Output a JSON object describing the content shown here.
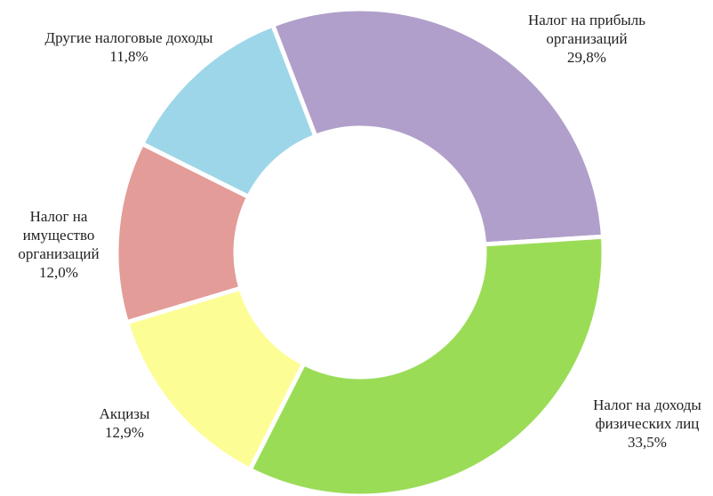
{
  "chart_data": {
    "type": "donut",
    "categories": [
      "Налог на прибыль организаций",
      "Налог на доходы физических лиц",
      "Акцизы",
      "Налог на имущество организаций",
      "Другие налоговые доходы"
    ],
    "values": [
      29.8,
      33.5,
      12.9,
      12.0,
      11.8
    ],
    "value_labels": [
      "29,8%",
      "33,5%",
      "12,9%",
      "12,0%",
      "11,8%"
    ],
    "colors": [
      "#b09fca",
      "#9bdc57",
      "#fdfd96",
      "#e39c98",
      "#9dd6e8"
    ]
  }
}
